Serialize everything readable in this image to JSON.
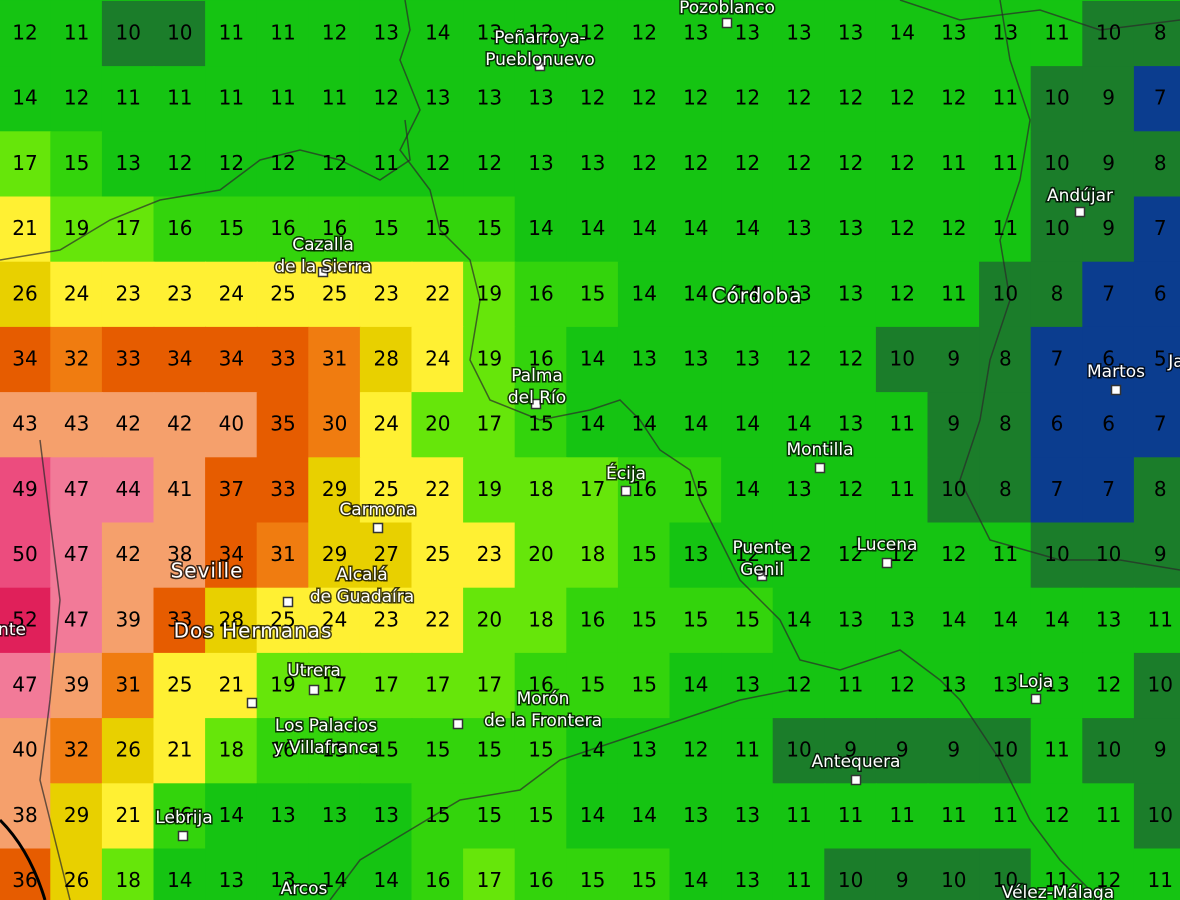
{
  "grid": {
    "rows": [
      [
        12,
        11,
        10,
        10,
        11,
        11,
        12,
        13,
        14,
        13,
        12,
        12,
        12,
        13,
        13,
        13,
        13,
        14,
        13,
        13,
        11,
        10,
        8
      ],
      [
        14,
        12,
        11,
        11,
        11,
        11,
        11,
        12,
        13,
        13,
        13,
        12,
        12,
        12,
        12,
        12,
        12,
        12,
        12,
        11,
        10,
        9,
        7
      ],
      [
        17,
        15,
        13,
        12,
        12,
        12,
        12,
        11,
        12,
        12,
        13,
        13,
        12,
        12,
        12,
        12,
        12,
        12,
        11,
        11,
        10,
        9,
        8
      ],
      [
        21,
        19,
        17,
        16,
        15,
        16,
        16,
        15,
        15,
        15,
        14,
        14,
        14,
        14,
        14,
        13,
        13,
        12,
        12,
        11,
        10,
        9,
        7
      ],
      [
        26,
        24,
        23,
        23,
        24,
        25,
        25,
        23,
        22,
        19,
        16,
        15,
        14,
        14,
        14,
        13,
        13,
        12,
        11,
        10,
        8,
        7,
        6
      ],
      [
        34,
        32,
        33,
        34,
        34,
        33,
        31,
        28,
        24,
        19,
        16,
        14,
        13,
        13,
        13,
        12,
        12,
        10,
        9,
        8,
        7,
        6,
        5
      ],
      [
        43,
        43,
        42,
        42,
        40,
        35,
        30,
        24,
        20,
        17,
        15,
        14,
        14,
        14,
        14,
        14,
        13,
        11,
        9,
        8,
        6,
        6,
        7
      ],
      [
        49,
        47,
        44,
        41,
        37,
        33,
        29,
        25,
        22,
        19,
        18,
        17,
        16,
        15,
        14,
        13,
        12,
        11,
        10,
        8,
        7,
        7,
        8
      ],
      [
        50,
        47,
        42,
        38,
        34,
        31,
        29,
        27,
        25,
        23,
        20,
        18,
        15,
        13,
        12,
        12,
        12,
        12,
        12,
        11,
        10,
        10,
        9
      ],
      [
        52,
        47,
        39,
        33,
        28,
        25,
        24,
        23,
        22,
        20,
        18,
        16,
        15,
        15,
        15,
        14,
        13,
        13,
        14,
        14,
        14,
        13,
        11
      ],
      [
        47,
        39,
        31,
        25,
        21,
        19,
        17,
        17,
        17,
        17,
        16,
        15,
        15,
        14,
        13,
        12,
        11,
        12,
        13,
        13,
        13,
        12,
        10
      ],
      [
        40,
        32,
        26,
        21,
        18,
        16,
        15,
        15,
        15,
        15,
        15,
        14,
        13,
        12,
        11,
        10,
        9,
        9,
        9,
        10,
        11,
        10,
        9
      ],
      [
        38,
        29,
        21,
        16,
        14,
        13,
        13,
        13,
        15,
        15,
        15,
        14,
        14,
        13,
        13,
        11,
        11,
        11,
        11,
        11,
        12,
        11,
        10
      ],
      [
        36,
        26,
        18,
        14,
        13,
        13,
        14,
        14,
        16,
        17,
        16,
        15,
        15,
        14,
        13,
        11,
        10,
        9,
        10,
        10,
        11,
        12,
        11
      ]
    ]
  },
  "color_scale": [
    {
      "from": 0,
      "color": "#0b3d8f"
    },
    {
      "from": 8,
      "color": "#1b7d2a"
    },
    {
      "from": 11,
      "color": "#15c412"
    },
    {
      "from": 15,
      "color": "#33d40c"
    },
    {
      "from": 17,
      "color": "#66e60a"
    },
    {
      "from": 21,
      "color": "#fff033"
    },
    {
      "from": 26,
      "color": "#e8d000"
    },
    {
      "from": 30,
      "color": "#f07c10"
    },
    {
      "from": 33,
      "color": "#e65c00"
    },
    {
      "from": 38,
      "color": "#f5a06c"
    },
    {
      "from": 44,
      "color": "#f27a98"
    },
    {
      "from": 49,
      "color": "#ec4c7e"
    },
    {
      "from": 52,
      "color": "#e0205a"
    }
  ],
  "places": [
    {
      "lines": [
        "Pozoblanco"
      ]
    },
    {
      "lines": [
        "Peñarroya-",
        "Pueblonuevo"
      ]
    },
    {
      "lines": [
        "Andújar"
      ]
    },
    {
      "lines": [
        "Cazalla",
        "de la Sierra"
      ]
    },
    {
      "lines": [
        "Córdoba"
      ]
    },
    {
      "lines": [
        "Palma",
        "del Río"
      ]
    },
    {
      "lines": [
        "Martos"
      ]
    },
    {
      "lines": [
        "Ja"
      ]
    },
    {
      "lines": [
        "Montilla"
      ]
    },
    {
      "lines": [
        "Écija"
      ]
    },
    {
      "lines": [
        "Carmona"
      ]
    },
    {
      "lines": [
        "Puente",
        "Genil"
      ]
    },
    {
      "lines": [
        "Lucena"
      ]
    },
    {
      "lines": [
        "Seville"
      ]
    },
    {
      "lines": [
        "Alcalá",
        "de Guadaíra"
      ]
    },
    {
      "lines": [
        "nte"
      ]
    },
    {
      "lines": [
        "Dos Hermanas"
      ]
    },
    {
      "lines": [
        "Utrera"
      ]
    },
    {
      "lines": [
        "Morón",
        "de la Frontera"
      ]
    },
    {
      "lines": [
        "Los Palacios",
        "y Villafranca"
      ]
    },
    {
      "lines": [
        "Loja"
      ]
    },
    {
      "lines": [
        "Antequera"
      ]
    },
    {
      "lines": [
        "Lebrija"
      ]
    },
    {
      "lines": [
        "Arcos"
      ]
    },
    {
      "lines": [
        "Vélez-Málaga"
      ]
    }
  ]
}
